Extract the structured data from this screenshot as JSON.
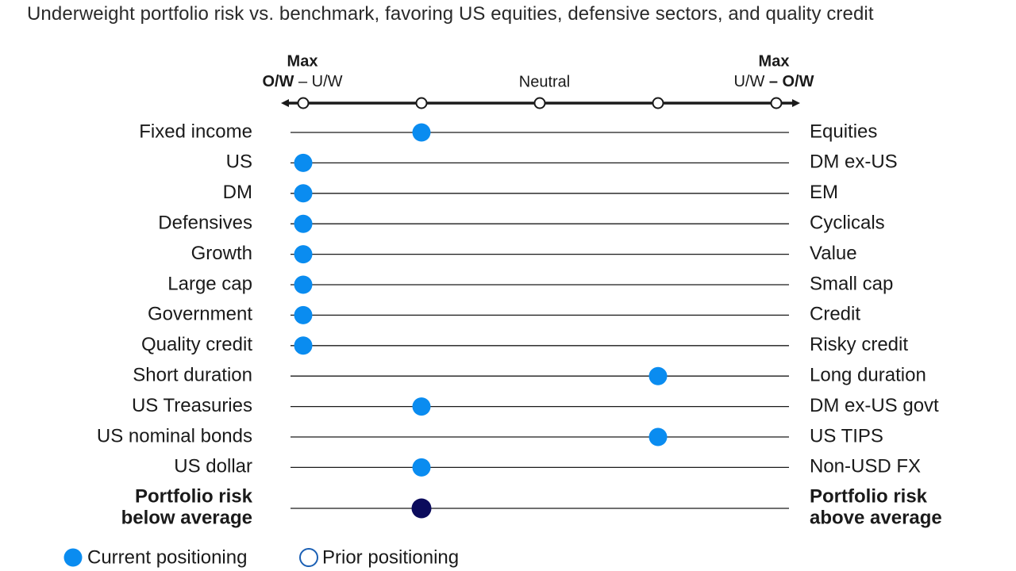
{
  "title": "Underweight portfolio risk vs. benchmark, favoring US equities, defensive sectors, and quality credit",
  "chart_data": {
    "type": "scatter",
    "title": "Underweight portfolio risk vs. benchmark, favoring US equities, defensive sectors, and quality credit",
    "scale": {
      "positions": [
        -2,
        -1,
        0,
        1,
        2
      ],
      "left_end": {
        "line1": "Max",
        "line2_bold": "O/W",
        "line2_rest": " – U/W"
      },
      "right_end": {
        "line1": "Max",
        "line2_rest": "U/W ",
        "line2_bold": "– O/W"
      },
      "center": "Neutral"
    },
    "rows": [
      {
        "left": "Fixed income",
        "right": "Equities",
        "value": -1
      },
      {
        "left": "US",
        "right": "DM ex-US",
        "value": -2
      },
      {
        "left": "DM",
        "right": "EM",
        "value": -2
      },
      {
        "left": "Defensives",
        "right": "Cyclicals",
        "value": -2
      },
      {
        "left": "Growth",
        "right": "Value",
        "value": -2
      },
      {
        "left": "Large cap",
        "right": "Small cap",
        "value": -2
      },
      {
        "left": "Government",
        "right": "Credit",
        "value": -2
      },
      {
        "left": "Quality credit",
        "right": "Risky credit",
        "value": -2
      },
      {
        "left": "Short duration",
        "right": "Long duration",
        "value": 1
      },
      {
        "left": "US Treasuries",
        "right": "DM ex-US govt",
        "value": -1
      },
      {
        "left": "US nominal bonds",
        "right": "US TIPS",
        "value": 1
      },
      {
        "left": "US dollar",
        "right": "Non-USD FX",
        "value": -1
      }
    ],
    "summary_row": {
      "left_lines": [
        "Portfolio risk",
        "below average"
      ],
      "right_lines": [
        "Portfolio risk",
        "above average"
      ],
      "value": -1
    },
    "legend": [
      {
        "label": "Current positioning",
        "style": "filled"
      },
      {
        "label": "Prior positioning",
        "style": "hollow"
      }
    ],
    "colors": {
      "current": "#0a8cf0",
      "summary": "#0b0b5c",
      "line": "#1a1a1a",
      "hollow_stroke": "#1a5fb4"
    }
  }
}
